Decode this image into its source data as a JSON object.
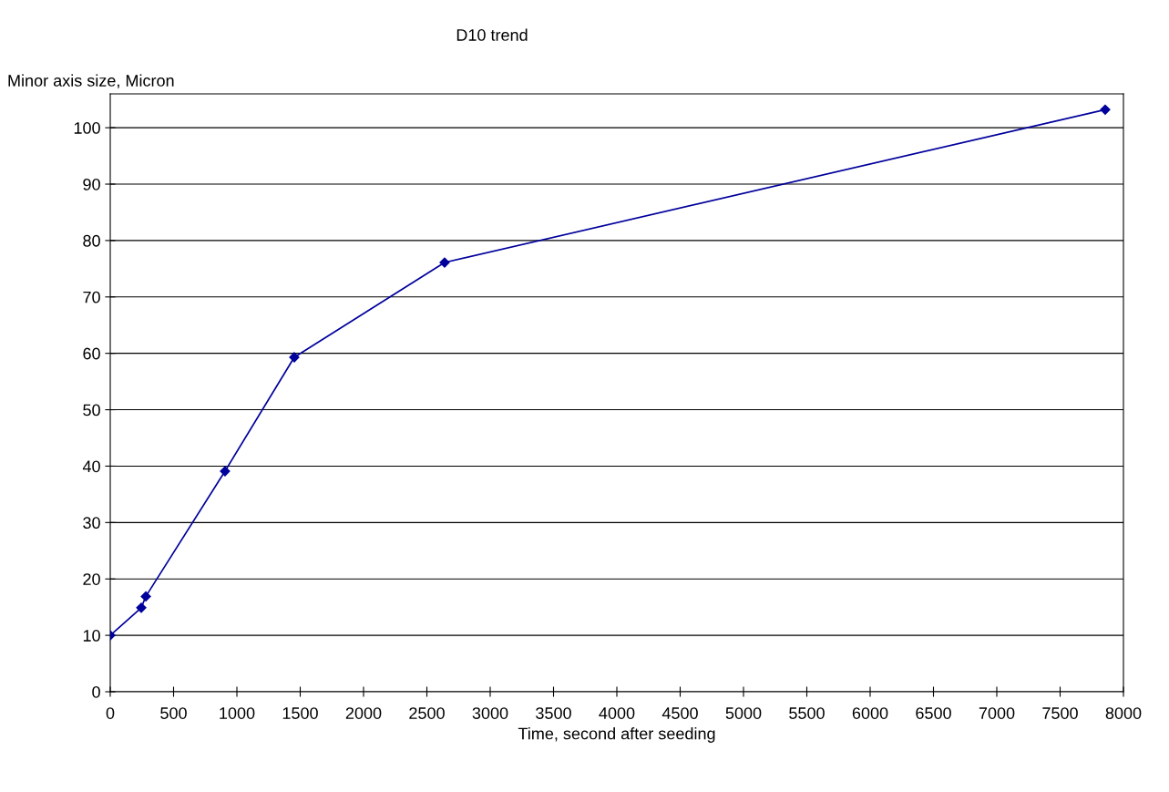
{
  "chart_data": {
    "type": "line",
    "title": "D10 trend",
    "xlabel": "Time, second after seeding",
    "ylabel": "Minor axis size, Micron",
    "x": [
      0,
      245,
      281,
      906,
      1453,
      2640,
      7856
    ],
    "series": [
      {
        "color": "#00009c",
        "values": [
          10,
          14.9,
          16.9,
          39.1,
          59.3,
          76.1,
          103.2
        ]
      }
    ],
    "xlim": [
      0,
      8000
    ],
    "xticks": [
      0,
      500,
      1000,
      1500,
      2000,
      2500,
      3000,
      3500,
      4000,
      4500,
      5000,
      5500,
      6000,
      6500,
      7000,
      7500,
      8000
    ],
    "ylim": [
      0,
      106
    ],
    "yticks": [
      0,
      10,
      20,
      30,
      40,
      50,
      60,
      70,
      80,
      90,
      100
    ],
    "grid": "y",
    "marker": "diamond",
    "line_style": "solid",
    "legend": false
  }
}
